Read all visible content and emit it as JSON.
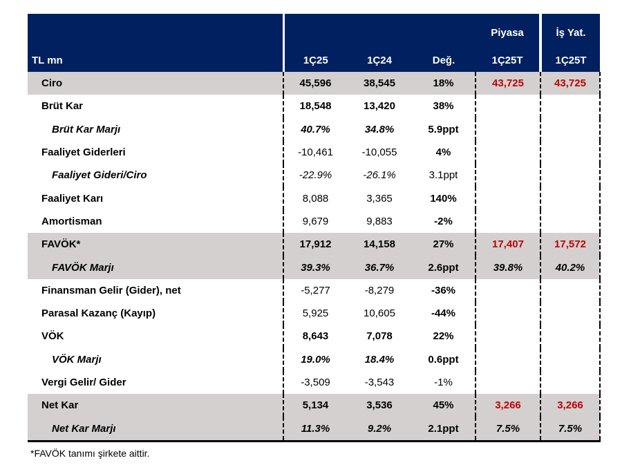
{
  "header": {
    "unit_label": "TL mn",
    "cols": [
      "1Ç25",
      "1Ç24",
      "Değ.",
      "1Ç25T",
      "1Ç25T"
    ],
    "group_piyasa": "Piyasa",
    "group_is_yat": "İş Yat."
  },
  "colors": {
    "header_bg": "#002060",
    "highlight_bg": "#d4d0d0",
    "estimate_text": "#c00000"
  },
  "rows": [
    {
      "label": "Ciro",
      "v1": "45,596",
      "v2": "38,545",
      "chg": "18%",
      "piyasa": "43,725",
      "isyat": "43,725",
      "grey": true,
      "indent": false,
      "bold_vals": true,
      "italic_vals": false,
      "bold_chg": true,
      "red_est": true
    },
    {
      "label": "Brüt Kar",
      "v1": "18,548",
      "v2": "13,420",
      "chg": "38%",
      "piyasa": "",
      "isyat": "",
      "grey": false,
      "indent": false,
      "bold_vals": true,
      "italic_vals": false,
      "bold_chg": true
    },
    {
      "label": "Brüt Kar Marjı",
      "v1": "40.7%",
      "v2": "34.8%",
      "chg": "5.9ppt",
      "piyasa": "",
      "isyat": "",
      "grey": false,
      "indent": true,
      "bold_vals": true,
      "italic_vals": true,
      "bold_chg": true
    },
    {
      "label": "Faaliyet Giderleri",
      "v1": "-10,461",
      "v2": "-10,055",
      "chg": "4%",
      "piyasa": "",
      "isyat": "",
      "grey": false,
      "indent": false,
      "bold_vals": false,
      "italic_vals": false,
      "bold_chg": true
    },
    {
      "label": "Faaliyet Gideri/Ciro",
      "v1": "-22.9%",
      "v2": "-26.1%",
      "chg": "3.1ppt",
      "piyasa": "",
      "isyat": "",
      "grey": false,
      "indent": true,
      "bold_vals": false,
      "italic_vals": true,
      "bold_chg": false
    },
    {
      "label": "Faaliyet Karı",
      "v1": "8,088",
      "v2": "3,365",
      "chg": "140%",
      "piyasa": "",
      "isyat": "",
      "grey": false,
      "indent": false,
      "bold_vals": false,
      "italic_vals": false,
      "bold_chg": true
    },
    {
      "label": "Amortisman",
      "v1": "9,679",
      "v2": "9,883",
      "chg": "-2%",
      "piyasa": "",
      "isyat": "",
      "grey": false,
      "indent": false,
      "bold_vals": false,
      "italic_vals": false,
      "bold_chg": true
    },
    {
      "label": "FAVÖK*",
      "v1": "17,912",
      "v2": "14,158",
      "chg": "27%",
      "piyasa": "17,407",
      "isyat": "17,572",
      "grey": true,
      "indent": false,
      "bold_vals": true,
      "italic_vals": false,
      "bold_chg": true,
      "red_est": true
    },
    {
      "label": "FAVÖK Marjı",
      "v1": "39.3%",
      "v2": "36.7%",
      "chg": "2.6ppt",
      "piyasa": "39.8%",
      "isyat": "40.2%",
      "grey": true,
      "indent": true,
      "bold_vals": true,
      "italic_vals": true,
      "bold_chg": true
    },
    {
      "label": "Finansman Gelir (Gider), net",
      "v1": "-5,277",
      "v2": "-8,279",
      "chg": "-36%",
      "piyasa": "",
      "isyat": "",
      "grey": false,
      "indent": false,
      "bold_vals": false,
      "italic_vals": false,
      "bold_chg": true
    },
    {
      "label": "Parasal Kazanç (Kayıp)",
      "v1": "5,925",
      "v2": "10,605",
      "chg": "-44%",
      "piyasa": "",
      "isyat": "",
      "grey": false,
      "indent": false,
      "bold_vals": false,
      "italic_vals": false,
      "bold_chg": true
    },
    {
      "label": "VÖK",
      "v1": "8,643",
      "v2": "7,078",
      "chg": "22%",
      "piyasa": "",
      "isyat": "",
      "grey": false,
      "indent": false,
      "bold_vals": true,
      "italic_vals": false,
      "bold_chg": true
    },
    {
      "label": "VÖK Marjı",
      "v1": "19.0%",
      "v2": "18.4%",
      "chg": "0.6ppt",
      "piyasa": "",
      "isyat": "",
      "grey": false,
      "indent": true,
      "bold_vals": true,
      "italic_vals": true,
      "bold_chg": true
    },
    {
      "label": "Vergi Gelir/ Gider",
      "v1": "-3,509",
      "v2": "-3,543",
      "chg": "-1%",
      "piyasa": "",
      "isyat": "",
      "grey": false,
      "indent": false,
      "bold_vals": false,
      "italic_vals": false,
      "bold_chg": false
    },
    {
      "label": "Net Kar",
      "v1": "5,134",
      "v2": "3,536",
      "chg": "45%",
      "piyasa": "3,266",
      "isyat": "3,266",
      "grey": true,
      "indent": false,
      "bold_vals": true,
      "italic_vals": false,
      "bold_chg": true,
      "red_est": true
    },
    {
      "label": "Net Kar  Marjı",
      "v1": "11.3%",
      "v2": "9.2%",
      "chg": "2.1ppt",
      "piyasa": "7.5%",
      "isyat": "7.5%",
      "grey": true,
      "indent": true,
      "bold_vals": true,
      "italic_vals": true,
      "bold_chg": true
    }
  ],
  "footnote": "*FAVÖK tanımı şirkete aittir."
}
